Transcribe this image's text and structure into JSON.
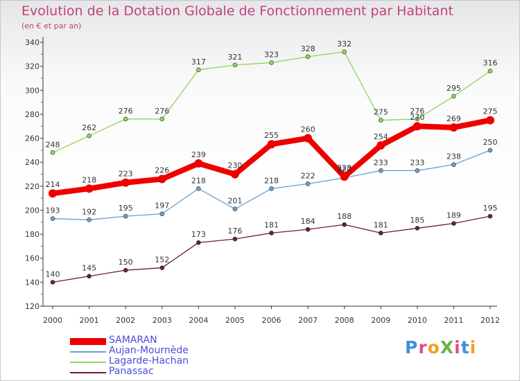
{
  "title": "Evolution de la Dotation Globale de Fonctionnement par Habitant",
  "subtitle": "(en € et par an)",
  "colors": {
    "title": "#c2407e",
    "legend_text": "#4c4cd6",
    "axis": "#333333"
  },
  "logo": {
    "text": "ProXiti",
    "letter_colors": [
      "#3f8fd8",
      "#e04d8a",
      "#f0a020",
      "#6db33f",
      "#e04d8a",
      "#3f8fd8",
      "#f0a020"
    ]
  },
  "chart_data": {
    "type": "line",
    "title": "Evolution de la Dotation Globale de Fonctionnement par Habitant",
    "subtitle": "(en € et par an)",
    "xlabel": "",
    "ylabel": "",
    "x": [
      "2000",
      "2001",
      "2002",
      "2003",
      "2004",
      "2005",
      "2006",
      "2007",
      "2008",
      "2009",
      "2010",
      "2011",
      "2012"
    ],
    "ylim": [
      120,
      340
    ],
    "yticks": [
      120,
      140,
      160,
      180,
      200,
      220,
      240,
      260,
      280,
      300,
      320,
      340
    ],
    "grid": false,
    "legend_position": "bottom-left",
    "series": [
      {
        "name": "SAMARAN",
        "color": "#ee0000",
        "values": [
          214,
          218,
          223,
          226,
          239,
          230,
          255,
          260,
          228,
          254,
          270,
          269,
          275
        ]
      },
      {
        "name": "Aujan-Mournède",
        "color": "#6a9fd0",
        "values": [
          193,
          192,
          195,
          197,
          218,
          201,
          218,
          222,
          227,
          233,
          233,
          238,
          250
        ]
      },
      {
        "name": "Lagarde-Hachan",
        "color": "#8ed45a",
        "values": [
          248,
          262,
          276,
          276,
          317,
          321,
          323,
          328,
          332,
          275,
          276,
          295,
          316
        ]
      },
      {
        "name": "Panassac",
        "color": "#6e1f2a",
        "values": [
          140,
          145,
          150,
          152,
          173,
          176,
          181,
          184,
          188,
          181,
          185,
          189,
          195
        ]
      }
    ]
  }
}
